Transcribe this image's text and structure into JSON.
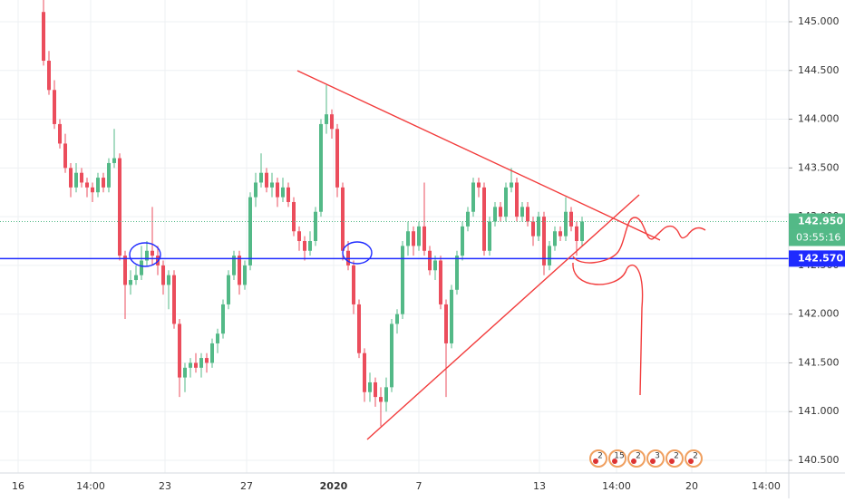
{
  "chart_data": {
    "type": "candlestick",
    "up_color": "#53b987",
    "down_color": "#eb4d5c",
    "grid": true,
    "xlim": [
      -8,
      137
    ],
    "ylim": [
      140.37,
      145.223
    ],
    "yticks": [
      {
        "value": 145.0,
        "label": "145.000"
      },
      {
        "value": 144.5,
        "label": "144.500"
      },
      {
        "value": 144.0,
        "label": "144.000"
      },
      {
        "value": 143.5,
        "label": "143.500"
      },
      {
        "value": 143.0,
        "label": "143.000"
      },
      {
        "value": 142.5,
        "label": "142.500"
      },
      {
        "value": 142.0,
        "label": "142.000"
      },
      {
        "value": 141.5,
        "label": "141.500"
      },
      {
        "value": 141.0,
        "label": "141.000"
      },
      {
        "value": 140.5,
        "label": "140.500"
      }
    ],
    "xticks": [
      {
        "value": -4.67,
        "label": "16"
      },
      {
        "value": 8.67,
        "label": "14:00"
      },
      {
        "value": 22.33,
        "label": "23"
      },
      {
        "value": 37.33,
        "label": "27"
      },
      {
        "value": 53.33,
        "label": "2020"
      },
      {
        "value": 69,
        "label": "7"
      },
      {
        "value": 91.17,
        "label": "13"
      },
      {
        "value": 105.33,
        "label": "14:00"
      },
      {
        "value": 119.17,
        "label": "20"
      },
      {
        "value": 132.83,
        "label": "14:00"
      }
    ],
    "price_lines": [
      {
        "value": 142.95,
        "label": "142.950",
        "color": "#53b987",
        "style": "dotted"
      },
      {
        "value": 142.57,
        "label": "142.570",
        "color": "#1f2bff",
        "style": "solid"
      }
    ],
    "countdown": "03:55:16",
    "events": [
      "2",
      "15",
      "2",
      "3",
      "2",
      "2"
    ],
    "ohlc": [
      [
        145.1,
        145.25,
        144.55,
        144.6
      ],
      [
        144.6,
        144.7,
        144.25,
        144.3
      ],
      [
        144.3,
        144.4,
        143.9,
        143.95
      ],
      [
        143.95,
        144.0,
        143.7,
        143.75
      ],
      [
        143.75,
        143.85,
        143.45,
        143.5
      ],
      [
        143.5,
        143.55,
        143.2,
        143.3
      ],
      [
        143.3,
        143.55,
        143.25,
        143.45
      ],
      [
        143.45,
        143.5,
        143.3,
        143.35
      ],
      [
        143.35,
        143.4,
        143.2,
        143.3
      ],
      [
        143.3,
        143.35,
        143.15,
        143.25
      ],
      [
        143.25,
        143.45,
        143.2,
        143.4
      ],
      [
        143.4,
        143.45,
        143.25,
        143.3
      ],
      [
        143.3,
        143.6,
        143.25,
        143.55
      ],
      [
        143.55,
        143.9,
        143.5,
        143.6
      ],
      [
        143.6,
        143.65,
        142.55,
        142.6
      ],
      [
        142.6,
        142.65,
        141.95,
        142.3
      ],
      [
        142.3,
        142.45,
        142.2,
        142.35
      ],
      [
        142.35,
        142.5,
        142.3,
        142.4
      ],
      [
        142.4,
        142.7,
        142.35,
        142.55
      ],
      [
        142.55,
        142.75,
        142.5,
        142.65
      ],
      [
        142.65,
        143.1,
        142.5,
        142.6
      ],
      [
        142.6,
        142.7,
        142.4,
        142.5
      ],
      [
        142.5,
        142.55,
        142.2,
        142.3
      ],
      [
        142.3,
        142.45,
        142.05,
        142.4
      ],
      [
        142.4,
        142.45,
        141.85,
        141.9
      ],
      [
        141.9,
        141.95,
        141.15,
        141.35
      ],
      [
        141.35,
        141.5,
        141.2,
        141.45
      ],
      [
        141.45,
        141.55,
        141.35,
        141.5
      ],
      [
        141.5,
        141.6,
        141.4,
        141.45
      ],
      [
        141.45,
        141.6,
        141.35,
        141.55
      ],
      [
        141.55,
        141.6,
        141.4,
        141.5
      ],
      [
        141.5,
        141.75,
        141.45,
        141.7
      ],
      [
        141.7,
        141.85,
        141.6,
        141.8
      ],
      [
        141.8,
        142.15,
        141.75,
        142.1
      ],
      [
        142.1,
        142.45,
        142.05,
        142.4
      ],
      [
        142.4,
        142.65,
        142.35,
        142.6
      ],
      [
        142.6,
        142.65,
        142.2,
        142.3
      ],
      [
        142.3,
        142.55,
        142.25,
        142.5
      ],
      [
        142.5,
        143.25,
        142.45,
        143.2
      ],
      [
        143.2,
        143.45,
        143.1,
        143.35
      ],
      [
        143.35,
        143.65,
        143.3,
        143.45
      ],
      [
        143.45,
        143.5,
        143.25,
        143.3
      ],
      [
        143.3,
        143.45,
        143.2,
        143.35
      ],
      [
        143.35,
        143.4,
        143.1,
        143.2
      ],
      [
        143.2,
        143.4,
        143.15,
        143.3
      ],
      [
        143.3,
        143.35,
        143.1,
        143.15
      ],
      [
        143.15,
        143.2,
        142.8,
        142.85
      ],
      [
        142.85,
        142.9,
        142.65,
        142.75
      ],
      [
        142.75,
        142.8,
        142.55,
        142.65
      ],
      [
        142.65,
        142.85,
        142.6,
        142.75
      ],
      [
        142.75,
        143.1,
        142.7,
        143.05
      ],
      [
        143.05,
        144.0,
        143.0,
        143.95
      ],
      [
        143.95,
        144.35,
        143.85,
        144.05
      ],
      [
        144.05,
        144.1,
        143.8,
        143.9
      ],
      [
        143.9,
        143.95,
        143.2,
        143.3
      ],
      [
        143.3,
        143.35,
        142.55,
        142.65
      ],
      [
        142.65,
        142.75,
        142.45,
        142.5
      ],
      [
        142.5,
        142.55,
        142.0,
        142.1
      ],
      [
        142.1,
        142.15,
        141.55,
        141.6
      ],
      [
        141.6,
        141.65,
        141.1,
        141.2
      ],
      [
        141.2,
        141.4,
        141.1,
        141.3
      ],
      [
        141.3,
        141.35,
        141.05,
        141.15
      ],
      [
        141.15,
        141.25,
        140.85,
        141.1
      ],
      [
        141.1,
        141.35,
        141.0,
        141.25
      ],
      [
        141.25,
        141.95,
        141.2,
        141.9
      ],
      [
        141.9,
        142.05,
        141.8,
        142.0
      ],
      [
        142.0,
        142.75,
        141.95,
        142.7
      ],
      [
        142.7,
        142.95,
        142.6,
        142.85
      ],
      [
        142.85,
        142.9,
        142.6,
        142.7
      ],
      [
        142.7,
        142.95,
        142.65,
        142.9
      ],
      [
        142.9,
        143.35,
        142.6,
        142.65
      ],
      [
        142.65,
        142.7,
        142.4,
        142.45
      ],
      [
        142.45,
        142.6,
        142.35,
        142.55
      ],
      [
        142.55,
        142.6,
        142.05,
        142.1
      ],
      [
        142.1,
        142.15,
        141.15,
        141.7
      ],
      [
        141.7,
        142.3,
        141.65,
        142.25
      ],
      [
        142.25,
        142.65,
        142.2,
        142.6
      ],
      [
        142.6,
        142.95,
        142.55,
        142.9
      ],
      [
        142.9,
        143.1,
        142.85,
        143.05
      ],
      [
        143.05,
        143.4,
        143.0,
        143.35
      ],
      [
        143.35,
        143.4,
        143.2,
        143.3
      ],
      [
        143.3,
        143.35,
        142.6,
        142.65
      ],
      [
        142.65,
        143.0,
        142.6,
        142.95
      ],
      [
        142.95,
        143.15,
        142.9,
        143.1
      ],
      [
        143.1,
        143.15,
        142.95,
        143.0
      ],
      [
        143.0,
        143.35,
        142.95,
        143.3
      ],
      [
        143.3,
        143.5,
        143.25,
        143.35
      ],
      [
        143.35,
        143.4,
        142.95,
        143.0
      ],
      [
        143.0,
        143.15,
        142.95,
        143.1
      ],
      [
        143.1,
        143.15,
        142.9,
        142.95
      ],
      [
        142.95,
        143.0,
        142.7,
        142.8
      ],
      [
        142.8,
        143.05,
        142.75,
        143.0
      ],
      [
        143.0,
        143.05,
        142.4,
        142.5
      ],
      [
        142.5,
        142.75,
        142.45,
        142.7
      ],
      [
        142.7,
        142.9,
        142.65,
        142.85
      ],
      [
        142.85,
        142.9,
        142.75,
        142.8
      ],
      [
        142.8,
        143.2,
        142.75,
        143.05
      ],
      [
        143.05,
        143.1,
        142.85,
        142.9
      ],
      [
        142.9,
        142.95,
        142.6,
        142.75
      ],
      [
        142.75,
        143.0,
        142.7,
        142.95
      ]
    ]
  }
}
